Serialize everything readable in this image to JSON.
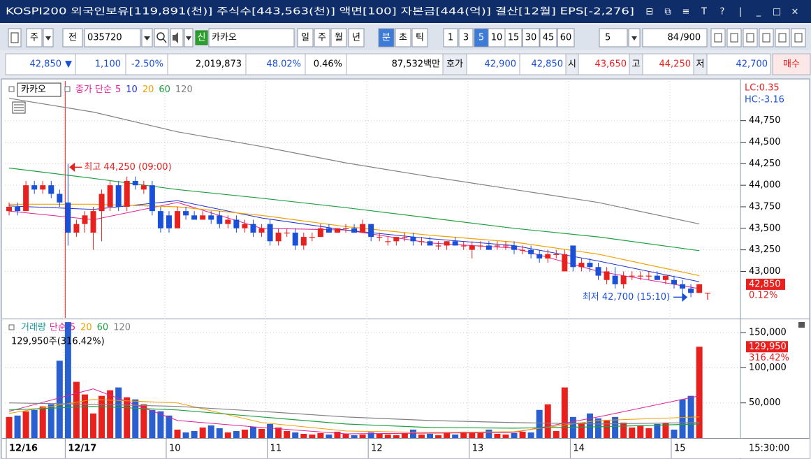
{
  "title_bar": {
    "text": "KOSPI200 외국인보유[119,891(천)] 주식수[443,563(천)] 액면[100] 자본금[444(억)] 결산[12월] EPS[-2,276]",
    "icons": [
      "⊟",
      "⧉",
      "≡",
      "T",
      "?",
      "|",
      "_",
      "□",
      "×"
    ]
  },
  "toolbar": {
    "market": "주",
    "scope": "전",
    "code": "035720",
    "badge": "신",
    "name": "카카오",
    "periods": [
      {
        "label": "일"
      },
      {
        "label": "주"
      },
      {
        "label": "월"
      },
      {
        "label": "년"
      },
      {
        "label": "분",
        "active": true
      },
      {
        "label": "초"
      },
      {
        "label": "틱"
      }
    ],
    "intervals": [
      {
        "label": "1"
      },
      {
        "label": "3"
      },
      {
        "label": "5",
        "active": true
      },
      {
        "label": "10"
      },
      {
        "label": "15"
      },
      {
        "label": "30"
      },
      {
        "label": "45"
      },
      {
        "label": "60"
      }
    ],
    "count_select": "5",
    "count": "84",
    "max": "/900"
  },
  "quote": {
    "price": "42,850",
    "direction": "▼",
    "change": "1,100",
    "change_pct": "-2.50%",
    "volume": "2,019,873",
    "ratio": "48.02%",
    "turnover_rate": "0.46%",
    "amount": "87,532백만",
    "ask_label": "호가",
    "ask": "42,900",
    "bid": "42,850",
    "open_label": "시",
    "open": "43,650",
    "high_label": "고",
    "high": "44,250",
    "low_label": "저",
    "low": "42,700",
    "action": "매수"
  },
  "chart_data": [
    {
      "type": "candlestick",
      "legend_name": "카카오",
      "ma_label": "종가 단순",
      "up_color": "#e8201e",
      "down_color": "#1a4fd8",
      "grid": true,
      "time_label": "15:30:00",
      "categories": [
        "12/16",
        null,
        null,
        null,
        null,
        null,
        null,
        "12/17",
        null,
        null,
        null,
        null,
        null,
        null,
        null,
        null,
        null,
        null,
        null,
        "10",
        null,
        null,
        null,
        null,
        null,
        null,
        null,
        null,
        null,
        null,
        null,
        "11",
        null,
        null,
        null,
        null,
        null,
        null,
        null,
        null,
        null,
        null,
        null,
        "12",
        null,
        null,
        null,
        null,
        null,
        null,
        null,
        null,
        null,
        null,
        null,
        "13",
        null,
        null,
        null,
        null,
        null,
        null,
        null,
        null,
        null,
        null,
        null,
        "14",
        null,
        null,
        null,
        null,
        null,
        null,
        null,
        null,
        null,
        null,
        null,
        "15",
        null,
        null,
        null
      ],
      "ohlc": [
        [
          43700,
          43800,
          43650,
          43750
        ],
        [
          43750,
          43800,
          43650,
          43700
        ],
        [
          43700,
          44050,
          43700,
          44000
        ],
        [
          44000,
          44050,
          43900,
          43950
        ],
        [
          43950,
          44050,
          43900,
          44000
        ],
        [
          44000,
          44050,
          43850,
          43900
        ],
        [
          43900,
          43950,
          43750,
          43800
        ],
        [
          43800,
          44250,
          43300,
          43450
        ],
        [
          43450,
          43600,
          43400,
          43550
        ],
        [
          43550,
          43700,
          43450,
          43650
        ],
        [
          43450,
          43750,
          43250,
          43700
        ],
        [
          43700,
          43950,
          43350,
          43900
        ],
        [
          43750,
          44050,
          43700,
          44000
        ],
        [
          44000,
          44050,
          43700,
          43750
        ],
        [
          43750,
          44100,
          43700,
          44050
        ],
        [
          44050,
          44100,
          43950,
          44000
        ],
        [
          43950,
          44050,
          43900,
          44000
        ],
        [
          44000,
          44050,
          43650,
          43700
        ],
        [
          43700,
          43750,
          43450,
          43500
        ],
        [
          43650,
          43700,
          43450,
          43500
        ],
        [
          43500,
          43750,
          43500,
          43700
        ],
        [
          43700,
          43750,
          43600,
          43650
        ],
        [
          43650,
          43700,
          43600,
          43600
        ],
        [
          43600,
          43700,
          43600,
          43650
        ],
        [
          43650,
          43700,
          43550,
          43600
        ],
        [
          43650,
          43700,
          43500,
          43550
        ],
        [
          43550,
          43650,
          43500,
          43600
        ],
        [
          43600,
          43650,
          43450,
          43500
        ],
        [
          43500,
          43600,
          43450,
          43550
        ],
        [
          43550,
          43600,
          43400,
          43450
        ],
        [
          43450,
          43550,
          43400,
          43500
        ],
        [
          43550,
          43600,
          43300,
          43350
        ],
        [
          43350,
          43500,
          43300,
          43450
        ],
        [
          43450,
          43500,
          43400,
          43450
        ],
        [
          43450,
          43500,
          43250,
          43300
        ],
        [
          43300,
          43450,
          43250,
          43400
        ],
        [
          43400,
          43450,
          43350,
          43400
        ],
        [
          43400,
          43550,
          43400,
          43500
        ],
        [
          43500,
          43550,
          43450,
          43450
        ],
        [
          43450,
          43500,
          43450,
          43500
        ],
        [
          43500,
          43550,
          43450,
          43500
        ],
        [
          43500,
          43550,
          43450,
          43450
        ],
        [
          43450,
          43600,
          43450,
          43550
        ],
        [
          43550,
          43550,
          43350,
          43400
        ],
        [
          43400,
          43450,
          43350,
          43400
        ],
        [
          43350,
          43400,
          43300,
          43350
        ],
        [
          43350,
          43400,
          43300,
          43400
        ],
        [
          43400,
          43450,
          43350,
          43400
        ],
        [
          43400,
          43450,
          43300,
          43350
        ],
        [
          43350,
          43400,
          43300,
          43350
        ],
        [
          43350,
          43400,
          43300,
          43300
        ],
        [
          43300,
          43350,
          43250,
          43300
        ],
        [
          43300,
          43350,
          43250,
          43350
        ],
        [
          43350,
          43400,
          43300,
          43300
        ],
        [
          43300,
          43350,
          43250,
          43300
        ],
        [
          43250,
          43350,
          43150,
          43300
        ],
        [
          43300,
          43350,
          43250,
          43300
        ],
        [
          43300,
          43350,
          43250,
          43250
        ],
        [
          43300,
          43350,
          43250,
          43300
        ],
        [
          43300,
          43350,
          43250,
          43300
        ],
        [
          43300,
          43350,
          43200,
          43250
        ],
        [
          43250,
          43300,
          43200,
          43250
        ],
        [
          43250,
          43300,
          43150,
          43200
        ],
        [
          43200,
          43250,
          43100,
          43150
        ],
        [
          43150,
          43250,
          43100,
          43200
        ],
        [
          43200,
          43250,
          43150,
          43200
        ],
        [
          43000,
          43250,
          43000,
          43200
        ],
        [
          43300,
          43300,
          43000,
          43050
        ],
        [
          43050,
          43150,
          43000,
          43100
        ],
        [
          43100,
          43150,
          43000,
          43050
        ],
        [
          43050,
          43100,
          42900,
          42950
        ],
        [
          42900,
          43050,
          42850,
          43000
        ],
        [
          42950,
          43050,
          42800,
          42850
        ],
        [
          42850,
          43000,
          42800,
          42950
        ],
        [
          42950,
          43000,
          42900,
          42950
        ],
        [
          42950,
          43000,
          42900,
          42950
        ],
        [
          42950,
          43000,
          42900,
          42950
        ],
        [
          42950,
          43000,
          42900,
          42900
        ],
        [
          42900,
          42950,
          42850,
          42950
        ],
        [
          42900,
          42950,
          42800,
          42850
        ],
        [
          42850,
          42900,
          42750,
          42800
        ],
        [
          42800,
          42850,
          42700,
          42750
        ],
        [
          42750,
          42850,
          42750,
          42850
        ]
      ],
      "ylim": [
        42460,
        45210
      ],
      "yticks": [
        {
          "value": 43000,
          "label": "43,000"
        },
        {
          "value": 43250,
          "label": "43,250"
        },
        {
          "value": 43500,
          "label": "43,500"
        },
        {
          "value": 43750,
          "label": "43,750"
        },
        {
          "value": 44000,
          "label": "44,000"
        },
        {
          "value": 44250,
          "label": "44,250"
        },
        {
          "value": 44500,
          "label": "44,500"
        },
        {
          "value": 44750,
          "label": "44,750"
        }
      ],
      "moving_averages": [
        {
          "name": "5",
          "color": "#e0209a",
          "x": [
            0,
            10,
            20,
            30,
            40,
            50,
            60,
            70,
            82
          ],
          "values": [
            43700,
            43600,
            43800,
            43500,
            43480,
            43330,
            43270,
            43000,
            42800
          ]
        },
        {
          "name": "10",
          "color": "#2030d0",
          "x": [
            0,
            10,
            20,
            30,
            40,
            50,
            60,
            70,
            82
          ],
          "values": [
            43760,
            43720,
            43820,
            43620,
            43480,
            43380,
            43300,
            43120,
            42880
          ]
        },
        {
          "name": "20",
          "color": "#f0a000",
          "x": [
            0,
            10,
            20,
            30,
            40,
            50,
            60,
            70,
            82
          ],
          "values": [
            43780,
            43780,
            43750,
            43650,
            43520,
            43420,
            43340,
            43200,
            42950
          ]
        },
        {
          "name": "60",
          "color": "#20a040",
          "x": [
            0,
            10,
            20,
            30,
            40,
            50,
            60,
            70,
            82
          ],
          "values": [
            44200,
            44080,
            43950,
            43850,
            43740,
            43620,
            43500,
            43400,
            43240
          ]
        },
        {
          "name": "120",
          "color": "#808080",
          "x": [
            0,
            10,
            20,
            30,
            40,
            50,
            60,
            70,
            82
          ],
          "values": [
            45010,
            44850,
            44620,
            44450,
            44260,
            44100,
            43950,
            43800,
            43550
          ]
        }
      ],
      "annotations": {
        "high": "최고 44,250 (09:00)",
        "low": "최저 42,700 (15:10)",
        "lc": "LC:0.35",
        "hc": "HC:-3.16",
        "last": "42,850",
        "last_pct": "0.12%",
        "marker": "T"
      }
    },
    {
      "type": "bar",
      "legend_name": "거래량",
      "name_color": "#1a9aa0",
      "ma_label": "단순",
      "values": [
        30000,
        32000,
        38000,
        40000,
        45000,
        48000,
        110000,
        165000,
        80000,
        62000,
        35000,
        60000,
        68000,
        72000,
        58000,
        55000,
        48000,
        40000,
        38000,
        32000,
        12000,
        8000,
        10000,
        15000,
        18000,
        14000,
        8000,
        10000,
        12000,
        16000,
        13000,
        20000,
        15000,
        10000,
        8000,
        6000,
        5000,
        7000,
        5000,
        9000,
        6000,
        4000,
        5000,
        8000,
        6000,
        5000,
        4000,
        7000,
        12000,
        5000,
        6000,
        4000,
        8000,
        5000,
        9000,
        7000,
        8000,
        12000,
        6000,
        5000,
        7000,
        9000,
        8000,
        40000,
        48000,
        10000,
        72000,
        30000,
        22000,
        35000,
        28000,
        25000,
        30000,
        22000,
        15000,
        18000,
        14000,
        20000,
        22000,
        12000,
        55000,
        60000,
        129950
      ],
      "ylim": [
        0,
        168000
      ],
      "yticks": [
        {
          "value": 50000,
          "label": "50,000"
        },
        {
          "value": 100000,
          "label": "100,000"
        },
        {
          "value": 150000,
          "label": "150,000"
        }
      ],
      "moving_averages": [
        {
          "name": "5",
          "color": "#e0209a",
          "x": [
            0,
            10,
            20,
            30,
            40,
            50,
            60,
            70,
            82
          ],
          "values": [
            38000,
            70000,
            25000,
            15000,
            6000,
            7000,
            8000,
            30000,
            60000
          ]
        },
        {
          "name": "20",
          "color": "#f0a000",
          "x": [
            0,
            10,
            20,
            30,
            40,
            50,
            60,
            70,
            82
          ],
          "values": [
            35000,
            55000,
            50000,
            22000,
            10000,
            8000,
            9000,
            25000,
            30000
          ]
        },
        {
          "name": "60",
          "color": "#20a040",
          "x": [
            0,
            10,
            20,
            30,
            40,
            50,
            60,
            70,
            82
          ],
          "values": [
            40000,
            45000,
            40000,
            30000,
            20000,
            15000,
            14000,
            16000,
            20000
          ]
        },
        {
          "name": "120",
          "color": "#808080",
          "x": [
            0,
            10,
            20,
            30,
            40,
            50,
            60,
            70,
            82
          ],
          "values": [
            50000,
            48000,
            45000,
            38000,
            30000,
            25000,
            22000,
            20000,
            22000
          ]
        }
      ],
      "annotations": {
        "summary": "129,950주(316.42%)",
        "last": "129,950",
        "last_pct": "316.42%"
      }
    }
  ]
}
